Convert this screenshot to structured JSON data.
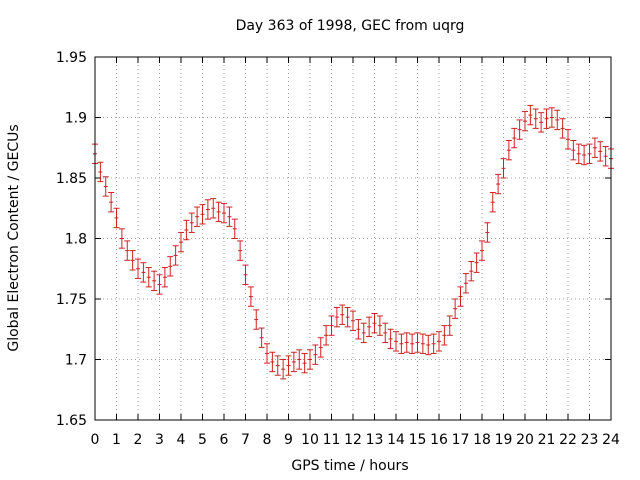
{
  "chart_data": {
    "type": "scatter",
    "title": "Day 363 of 1998, GEC from uqrg",
    "xlabel": "GPS time / hours",
    "ylabel": "Global Electron Content / GECUs",
    "xlim": [
      0,
      24
    ],
    "ylim": [
      1.65,
      1.95
    ],
    "xticks": [
      0,
      1,
      2,
      3,
      4,
      5,
      6,
      7,
      8,
      9,
      10,
      11,
      12,
      13,
      14,
      15,
      16,
      17,
      18,
      19,
      20,
      21,
      22,
      23,
      24
    ],
    "yticks": [
      1.65,
      1.7,
      1.75,
      1.8,
      1.85,
      1.9,
      1.95
    ],
    "ytick_labels": [
      "1.65",
      "1.7",
      "1.75",
      "1.8",
      "1.85",
      "1.9",
      "1.95"
    ],
    "grid": true,
    "error_bar": 0.008,
    "series_color": "#cc2222",
    "x": [
      0,
      0.25,
      0.5,
      0.75,
      1,
      1.25,
      1.5,
      1.75,
      2,
      2.25,
      2.5,
      2.75,
      3,
      3.25,
      3.5,
      3.75,
      4,
      4.25,
      4.5,
      4.75,
      5,
      5.25,
      5.5,
      5.75,
      6,
      6.25,
      6.5,
      6.75,
      7,
      7.25,
      7.5,
      7.75,
      8,
      8.25,
      8.5,
      8.75,
      9,
      9.25,
      9.5,
      9.75,
      10,
      10.25,
      10.5,
      10.75,
      11,
      11.25,
      11.5,
      11.75,
      12,
      12.25,
      12.5,
      12.75,
      13,
      13.25,
      13.5,
      13.75,
      14,
      14.25,
      14.5,
      14.75,
      15,
      15.25,
      15.5,
      15.75,
      16,
      16.25,
      16.5,
      16.75,
      17,
      17.25,
      17.5,
      17.75,
      18,
      18.25,
      18.5,
      18.75,
      19,
      19.25,
      19.5,
      19.75,
      20,
      20.25,
      20.5,
      20.75,
      21,
      21.25,
      21.5,
      21.75,
      22,
      22.25,
      22.5,
      22.75,
      23,
      23.25,
      23.5,
      23.75,
      24
    ],
    "y": [
      1.87,
      1.855,
      1.843,
      1.83,
      1.817,
      1.8,
      1.79,
      1.782,
      1.775,
      1.772,
      1.768,
      1.765,
      1.762,
      1.768,
      1.777,
      1.786,
      1.797,
      1.807,
      1.813,
      1.818,
      1.82,
      1.824,
      1.825,
      1.822,
      1.821,
      1.818,
      1.808,
      1.79,
      1.77,
      1.752,
      1.733,
      1.718,
      1.705,
      1.698,
      1.695,
      1.692,
      1.695,
      1.698,
      1.7,
      1.697,
      1.7,
      1.704,
      1.71,
      1.72,
      1.728,
      1.735,
      1.737,
      1.735,
      1.732,
      1.725,
      1.722,
      1.727,
      1.73,
      1.728,
      1.722,
      1.717,
      1.715,
      1.713,
      1.714,
      1.713,
      1.714,
      1.713,
      1.712,
      1.713,
      1.715,
      1.72,
      1.728,
      1.742,
      1.752,
      1.763,
      1.773,
      1.78,
      1.79,
      1.805,
      1.83,
      1.845,
      1.858,
      1.873,
      1.883,
      1.89,
      1.897,
      1.902,
      1.899,
      1.896,
      1.899,
      1.9,
      1.898,
      1.891,
      1.882,
      1.873,
      1.87,
      1.869,
      1.87,
      1.875,
      1.872,
      1.868,
      1.866
    ]
  }
}
